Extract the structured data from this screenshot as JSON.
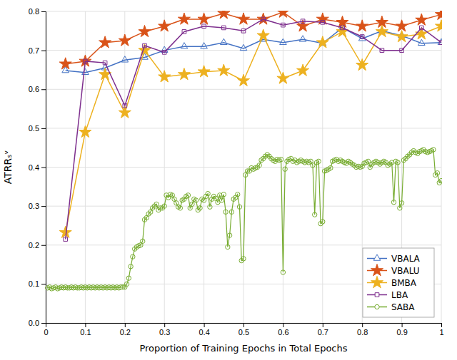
{
  "chart_data": {
    "type": "line",
    "xlabel": "Proportion of Training Epochs in Total Epochs",
    "ylabel": "ATRRₛᵛ",
    "xlim": [
      0,
      1.0
    ],
    "ylim": [
      0,
      0.8
    ],
    "xticks": [
      0,
      0.1,
      0.2,
      0.3,
      0.4,
      0.5,
      0.6,
      0.7,
      0.8,
      0.9,
      1
    ],
    "yticks": [
      {
        "value": 0,
        "label": "0.0"
      },
      0.1,
      0.2,
      0.3,
      0.4,
      0.5,
      0.6,
      0.7,
      0.8
    ],
    "grid": true,
    "legend": "lower right",
    "series": [
      {
        "name": "VBALA",
        "color": "#4472C4",
        "marker": "triangle-open",
        "x": [
          0.05,
          0.1,
          0.15,
          0.2,
          0.25,
          0.3,
          0.35,
          0.4,
          0.45,
          0.5,
          0.55,
          0.6,
          0.65,
          0.7,
          0.75,
          0.8,
          0.85,
          0.9,
          0.95,
          1.0
        ],
        "values": [
          0.648,
          0.643,
          0.655,
          0.675,
          0.682,
          0.7,
          0.71,
          0.71,
          0.72,
          0.705,
          0.728,
          0.72,
          0.728,
          0.718,
          0.758,
          0.73,
          0.75,
          0.738,
          0.718,
          0.72
        ]
      },
      {
        "name": "VBALU",
        "color": "#D95319",
        "marker": "star",
        "x": [
          0.05,
          0.1,
          0.15,
          0.2,
          0.25,
          0.3,
          0.35,
          0.4,
          0.45,
          0.5,
          0.55,
          0.6,
          0.65,
          0.7,
          0.75,
          0.8,
          0.85,
          0.9,
          0.95,
          1.0
        ],
        "values": [
          0.665,
          0.672,
          0.72,
          0.725,
          0.748,
          0.762,
          0.78,
          0.78,
          0.795,
          0.78,
          0.78,
          0.798,
          0.762,
          0.78,
          0.772,
          0.762,
          0.772,
          0.762,
          0.778,
          0.792
        ]
      },
      {
        "name": "BMBA",
        "color": "#EDB120",
        "marker": "star",
        "x": [
          0.05,
          0.1,
          0.15,
          0.2,
          0.25,
          0.3,
          0.35,
          0.4,
          0.45,
          0.5,
          0.55,
          0.6,
          0.65,
          0.7,
          0.75,
          0.8,
          0.85,
          0.9,
          0.95,
          1.0
        ],
        "values": [
          0.232,
          0.49,
          0.638,
          0.54,
          0.7,
          0.632,
          0.638,
          0.645,
          0.648,
          0.622,
          0.738,
          0.628,
          0.648,
          0.72,
          0.748,
          0.662,
          0.748,
          0.735,
          0.742,
          0.762
        ]
      },
      {
        "name": "LBA",
        "color": "#7E2F8E",
        "marker": "square-open",
        "x": [
          0.05,
          0.1,
          0.15,
          0.2,
          0.25,
          0.3,
          0.35,
          0.4,
          0.45,
          0.5,
          0.55,
          0.6,
          0.65,
          0.7,
          0.75,
          0.8,
          0.85,
          0.9,
          0.95,
          1.0
        ],
        "values": [
          0.215,
          0.672,
          0.668,
          0.558,
          0.712,
          0.695,
          0.748,
          0.762,
          0.758,
          0.75,
          0.78,
          0.765,
          0.775,
          0.772,
          0.758,
          0.735,
          0.7,
          0.7,
          0.758,
          0.72
        ]
      },
      {
        "name": "SABA",
        "color": "#77AC30",
        "marker": "circle-open",
        "x": [
          0.005,
          0.01,
          0.015,
          0.02,
          0.025,
          0.03,
          0.035,
          0.04,
          0.045,
          0.05,
          0.055,
          0.06,
          0.065,
          0.07,
          0.075,
          0.08,
          0.085,
          0.09,
          0.095,
          0.1,
          0.105,
          0.11,
          0.115,
          0.12,
          0.125,
          0.13,
          0.135,
          0.14,
          0.145,
          0.15,
          0.155,
          0.16,
          0.165,
          0.17,
          0.175,
          0.18,
          0.185,
          0.19,
          0.195,
          0.2,
          0.205,
          0.21,
          0.215,
          0.22,
          0.225,
          0.23,
          0.235,
          0.24,
          0.245,
          0.25,
          0.255,
          0.26,
          0.265,
          0.27,
          0.275,
          0.28,
          0.285,
          0.29,
          0.295,
          0.3,
          0.305,
          0.31,
          0.315,
          0.32,
          0.325,
          0.33,
          0.335,
          0.34,
          0.345,
          0.35,
          0.355,
          0.36,
          0.365,
          0.37,
          0.375,
          0.38,
          0.385,
          0.39,
          0.395,
          0.4,
          0.405,
          0.41,
          0.415,
          0.42,
          0.425,
          0.43,
          0.435,
          0.44,
          0.445,
          0.45,
          0.455,
          0.46,
          0.465,
          0.47,
          0.475,
          0.48,
          0.485,
          0.49,
          0.495,
          0.5,
          0.505,
          0.51,
          0.515,
          0.52,
          0.525,
          0.53,
          0.535,
          0.54,
          0.545,
          0.55,
          0.555,
          0.56,
          0.565,
          0.57,
          0.575,
          0.58,
          0.585,
          0.59,
          0.595,
          0.6,
          0.605,
          0.61,
          0.615,
          0.62,
          0.625,
          0.63,
          0.635,
          0.64,
          0.645,
          0.65,
          0.655,
          0.66,
          0.665,
          0.67,
          0.675,
          0.68,
          0.685,
          0.69,
          0.695,
          0.7,
          0.705,
          0.71,
          0.715,
          0.72,
          0.725,
          0.73,
          0.735,
          0.74,
          0.745,
          0.75,
          0.755,
          0.76,
          0.765,
          0.77,
          0.775,
          0.78,
          0.785,
          0.79,
          0.795,
          0.8,
          0.805,
          0.81,
          0.815,
          0.82,
          0.825,
          0.83,
          0.835,
          0.84,
          0.845,
          0.85,
          0.855,
          0.86,
          0.865,
          0.87,
          0.875,
          0.88,
          0.885,
          0.89,
          0.895,
          0.9,
          0.905,
          0.91,
          0.915,
          0.92,
          0.925,
          0.93,
          0.935,
          0.94,
          0.945,
          0.95,
          0.955,
          0.96,
          0.965,
          0.97,
          0.975,
          0.98,
          0.985,
          0.99,
          0.995,
          1.0
        ],
        "values": [
          0.09,
          0.092,
          0.088,
          0.09,
          0.092,
          0.088,
          0.09,
          0.092,
          0.09,
          0.092,
          0.09,
          0.09,
          0.092,
          0.09,
          0.092,
          0.09,
          0.09,
          0.092,
          0.09,
          0.092,
          0.09,
          0.092,
          0.09,
          0.092,
          0.09,
          0.092,
          0.09,
          0.092,
          0.09,
          0.092,
          0.09,
          0.092,
          0.09,
          0.092,
          0.09,
          0.092,
          0.09,
          0.092,
          0.092,
          0.092,
          0.1,
          0.115,
          0.145,
          0.17,
          0.19,
          0.195,
          0.198,
          0.2,
          0.21,
          0.265,
          0.27,
          0.28,
          0.285,
          0.295,
          0.3,
          0.305,
          0.29,
          0.295,
          0.295,
          0.3,
          0.328,
          0.322,
          0.33,
          0.328,
          0.318,
          0.308,
          0.298,
          0.295,
          0.315,
          0.318,
          0.325,
          0.328,
          0.295,
          0.305,
          0.318,
          0.315,
          0.29,
          0.295,
          0.318,
          0.315,
          0.325,
          0.332,
          0.298,
          0.318,
          0.325,
          0.32,
          0.31,
          0.328,
          0.315,
          0.33,
          0.285,
          0.195,
          0.225,
          0.285,
          0.318,
          0.322,
          0.33,
          0.298,
          0.16,
          0.165,
          0.38,
          0.39,
          0.39,
          0.398,
          0.395,
          0.398,
          0.4,
          0.405,
          0.418,
          0.422,
          0.428,
          0.432,
          0.428,
          0.422,
          0.418,
          0.415,
          0.42,
          0.418,
          0.42,
          0.13,
          0.395,
          0.415,
          0.42,
          0.422,
          0.415,
          0.418,
          0.412,
          0.415,
          0.418,
          0.415,
          0.412,
          0.415,
          0.412,
          0.415,
          0.405,
          0.278,
          0.412,
          0.415,
          0.255,
          0.26,
          0.39,
          0.392,
          0.395,
          0.398,
          0.415,
          0.418,
          0.42,
          0.415,
          0.418,
          0.415,
          0.412,
          0.41,
          0.415,
          0.412,
          0.408,
          0.405,
          0.4,
          0.402,
          0.4,
          0.402,
          0.41,
          0.412,
          0.415,
          0.4,
          0.408,
          0.412,
          0.415,
          0.412,
          0.408,
          0.412,
          0.415,
          0.412,
          0.405,
          0.408,
          0.412,
          0.31,
          0.415,
          0.412,
          0.295,
          0.308,
          0.418,
          0.422,
          0.428,
          0.432,
          0.438,
          0.442,
          0.438,
          0.435,
          0.44,
          0.442,
          0.445,
          0.44,
          0.438,
          0.44,
          0.442,
          0.445,
          0.38,
          0.385,
          0.36,
          0.365
        ]
      }
    ]
  }
}
